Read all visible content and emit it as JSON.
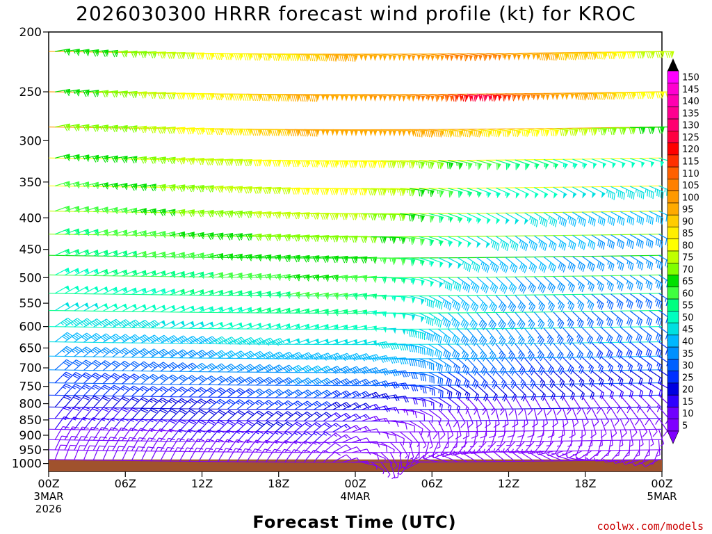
{
  "chart_data": {
    "type": "wind-barb-profile",
    "title": "2026030300 HRRR forecast wind profile (kt) for KROC",
    "xlabel": "Forecast Time (UTC)",
    "ylabel": "",
    "credit": "coolwx.com/models",
    "x_ticks": [
      {
        "hours": 0,
        "label": "00Z",
        "sub1": "3MAR",
        "sub2": "2026"
      },
      {
        "hours": 6,
        "label": "06Z",
        "sub1": "",
        "sub2": ""
      },
      {
        "hours": 12,
        "label": "12Z",
        "sub1": "",
        "sub2": ""
      },
      {
        "hours": 18,
        "label": "18Z",
        "sub1": "",
        "sub2": ""
      },
      {
        "hours": 24,
        "label": "00Z",
        "sub1": "4MAR",
        "sub2": ""
      },
      {
        "hours": 30,
        "label": "06Z",
        "sub1": "",
        "sub2": ""
      },
      {
        "hours": 36,
        "label": "12Z",
        "sub1": "",
        "sub2": ""
      },
      {
        "hours": 42,
        "label": "18Z",
        "sub1": "",
        "sub2": ""
      },
      {
        "hours": 48,
        "label": "00Z",
        "sub1": "5MAR",
        "sub2": ""
      }
    ],
    "xlim_hours": [
      0,
      48
    ],
    "pressure_ticks": [
      200,
      250,
      300,
      350,
      400,
      450,
      500,
      550,
      600,
      650,
      700,
      750,
      800,
      850,
      900,
      950,
      1000
    ],
    "ylim_hPa": [
      200,
      1030
    ],
    "ground_pressure_hPa": 985,
    "ground_color": "#A0522D",
    "colorbar": {
      "levels": [
        5,
        10,
        15,
        20,
        25,
        30,
        35,
        40,
        45,
        50,
        55,
        60,
        65,
        70,
        75,
        80,
        85,
        90,
        95,
        100,
        105,
        110,
        115,
        120,
        125,
        130,
        135,
        140,
        145,
        150
      ],
      "colors": [
        "#7F00FF",
        "#7000FF",
        "#3000FF",
        "#0000E0",
        "#0030FF",
        "#0060FF",
        "#0090FF",
        "#00B8FF",
        "#00E0E0",
        "#00FFC0",
        "#00FF80",
        "#40FF40",
        "#00E000",
        "#80FF00",
        "#C0FF00",
        "#FFFF00",
        "#FFEE00",
        "#FFCC00",
        "#FFAA00",
        "#FF9900",
        "#FF8000",
        "#FF6000",
        "#FF3000",
        "#FF0000",
        "#FF0040",
        "#FF0070",
        "#FF0090",
        "#FF00B0",
        "#FF00D0",
        "#FF00FF"
      ],
      "top_arrow_color": "#000000",
      "bottom_arrow_color": "#8000FF"
    },
    "profile_levels_hPa": [
      215,
      250,
      285,
      320,
      355,
      390,
      425,
      460,
      495,
      530,
      565,
      600,
      635,
      670,
      705,
      740,
      775,
      810,
      845,
      880,
      915,
      950,
      985
    ],
    "profile_times_hours": [
      0,
      3,
      6,
      9,
      12,
      15,
      18,
      21,
      24,
      27,
      30,
      33,
      36,
      39,
      42,
      45,
      48
    ],
    "speed_kt": [
      [
        65,
        68,
        72,
        78,
        82,
        85,
        88,
        95,
        98,
        100,
        105,
        110,
        100,
        95,
        90,
        80,
        78
      ],
      [
        65,
        70,
        74,
        80,
        85,
        90,
        95,
        98,
        100,
        102,
        110,
        130,
        110,
        100,
        95,
        85,
        80
      ],
      [
        70,
        72,
        75,
        80,
        85,
        90,
        95,
        98,
        100,
        98,
        95,
        90,
        85,
        80,
        75,
        70,
        68
      ],
      [
        65,
        68,
        70,
        75,
        78,
        80,
        82,
        85,
        82,
        78,
        70,
        62,
        58,
        55,
        52,
        50,
        50
      ],
      [
        62,
        65,
        68,
        72,
        75,
        78,
        80,
        82,
        80,
        75,
        62,
        55,
        52,
        50,
        48,
        45,
        45
      ],
      [
        60,
        62,
        65,
        70,
        72,
        75,
        76,
        78,
        75,
        70,
        58,
        52,
        48,
        45,
        42,
        40,
        42
      ],
      [
        58,
        60,
        62,
        65,
        68,
        70,
        72,
        75,
        72,
        65,
        55,
        48,
        45,
        42,
        40,
        38,
        40
      ],
      [
        55,
        58,
        60,
        62,
        65,
        66,
        68,
        70,
        68,
        60,
        50,
        45,
        42,
        40,
        38,
        36,
        38
      ],
      [
        52,
        55,
        56,
        58,
        60,
        62,
        65,
        66,
        62,
        55,
        48,
        42,
        40,
        38,
        36,
        35,
        35
      ],
      [
        50,
        52,
        54,
        55,
        56,
        58,
        60,
        62,
        58,
        52,
        45,
        42,
        38,
        36,
        35,
        34,
        34
      ],
      [
        48,
        50,
        50,
        52,
        53,
        55,
        56,
        58,
        55,
        50,
        45,
        40,
        38,
        35,
        34,
        32,
        32
      ],
      [
        45,
        46,
        47,
        48,
        50,
        52,
        53,
        54,
        52,
        48,
        42,
        38,
        36,
        34,
        32,
        30,
        30
      ],
      [
        40,
        42,
        42,
        44,
        45,
        46,
        48,
        50,
        48,
        45,
        40,
        36,
        34,
        32,
        30,
        28,
        28
      ],
      [
        35,
        36,
        38,
        38,
        40,
        42,
        44,
        45,
        44,
        40,
        36,
        32,
        30,
        28,
        27,
        26,
        26
      ],
      [
        30,
        32,
        32,
        34,
        36,
        38,
        40,
        40,
        38,
        34,
        30,
        28,
        26,
        24,
        24,
        22,
        22
      ],
      [
        28,
        28,
        30,
        30,
        32,
        34,
        35,
        35,
        32,
        28,
        25,
        22,
        20,
        20,
        20,
        18,
        18
      ],
      [
        25,
        25,
        26,
        26,
        28,
        30,
        30,
        30,
        25,
        20,
        16,
        14,
        12,
        12,
        14,
        14,
        14
      ],
      [
        20,
        22,
        22,
        24,
        25,
        26,
        26,
        25,
        20,
        14,
        10,
        10,
        10,
        10,
        10,
        10,
        10
      ],
      [
        18,
        18,
        20,
        20,
        22,
        22,
        22,
        20,
        15,
        10,
        8,
        8,
        8,
        8,
        8,
        8,
        8
      ],
      [
        15,
        16,
        16,
        18,
        18,
        20,
        20,
        18,
        12,
        8,
        6,
        6,
        6,
        6,
        6,
        6,
        6
      ],
      [
        12,
        14,
        14,
        15,
        16,
        16,
        16,
        15,
        10,
        6,
        5,
        5,
        5,
        5,
        5,
        5,
        5
      ],
      [
        10,
        12,
        12,
        12,
        14,
        14,
        14,
        12,
        8,
        5,
        5,
        5,
        5,
        5,
        5,
        5,
        5
      ],
      [
        8,
        10,
        10,
        10,
        12,
        12,
        12,
        10,
        5,
        5,
        5,
        5,
        5,
        5,
        5,
        5,
        5
      ]
    ],
    "direction_deg": [
      [
        260,
        262,
        265,
        268,
        270,
        272,
        274,
        275,
        276,
        277,
        278,
        278,
        277,
        276,
        274,
        272,
        270
      ],
      [
        260,
        262,
        265,
        268,
        270,
        272,
        274,
        275,
        276,
        277,
        278,
        278,
        277,
        276,
        274,
        272,
        270
      ],
      [
        258,
        260,
        262,
        265,
        268,
        270,
        272,
        274,
        275,
        276,
        277,
        278,
        278,
        277,
        275,
        272,
        270
      ],
      [
        255,
        258,
        260,
        262,
        265,
        268,
        270,
        272,
        274,
        276,
        280,
        285,
        288,
        290,
        290,
        288,
        285
      ],
      [
        252,
        255,
        258,
        260,
        262,
        265,
        268,
        270,
        272,
        275,
        282,
        290,
        295,
        298,
        298,
        295,
        292
      ],
      [
        250,
        252,
        255,
        258,
        260,
        262,
        265,
        268,
        270,
        275,
        285,
        295,
        300,
        302,
        300,
        298,
        295
      ],
      [
        248,
        250,
        252,
        255,
        258,
        260,
        262,
        265,
        268,
        275,
        290,
        300,
        305,
        305,
        302,
        300,
        298
      ],
      [
        245,
        248,
        250,
        252,
        255,
        258,
        260,
        262,
        265,
        275,
        292,
        305,
        310,
        308,
        305,
        302,
        300
      ],
      [
        242,
        245,
        248,
        250,
        252,
        255,
        258,
        260,
        262,
        275,
        295,
        310,
        315,
        312,
        308,
        305,
        302
      ],
      [
        240,
        242,
        245,
        248,
        250,
        252,
        255,
        258,
        260,
        275,
        300,
        315,
        318,
        315,
        310,
        306,
        304
      ],
      [
        238,
        240,
        242,
        245,
        248,
        250,
        252,
        255,
        258,
        275,
        305,
        320,
        320,
        318,
        312,
        308,
        305
      ],
      [
        235,
        238,
        240,
        242,
        245,
        248,
        250,
        252,
        255,
        272,
        305,
        320,
        322,
        320,
        315,
        310,
        306
      ],
      [
        232,
        235,
        238,
        240,
        242,
        245,
        248,
        250,
        252,
        270,
        305,
        320,
        322,
        320,
        315,
        310,
        306
      ],
      [
        230,
        232,
        235,
        238,
        240,
        242,
        245,
        248,
        250,
        268,
        300,
        318,
        320,
        318,
        312,
        308,
        305
      ],
      [
        228,
        230,
        232,
        235,
        238,
        240,
        242,
        245,
        248,
        265,
        298,
        315,
        318,
        315,
        310,
        306,
        303
      ],
      [
        225,
        228,
        230,
        232,
        235,
        238,
        240,
        242,
        245,
        262,
        295,
        312,
        315,
        312,
        308,
        304,
        300
      ],
      [
        222,
        225,
        228,
        230,
        232,
        235,
        238,
        240,
        245,
        265,
        300,
        320,
        330,
        330,
        325,
        318,
        312
      ],
      [
        220,
        222,
        225,
        228,
        230,
        232,
        235,
        238,
        245,
        270,
        310,
        340,
        350,
        345,
        335,
        325,
        318
      ],
      [
        218,
        220,
        222,
        225,
        228,
        230,
        232,
        235,
        245,
        280,
        330,
        355,
        5,
        0,
        345,
        335,
        325
      ],
      [
        215,
        218,
        220,
        222,
        225,
        228,
        230,
        232,
        250,
        300,
        350,
        10,
        20,
        15,
        0,
        350,
        340
      ],
      [
        210,
        212,
        215,
        218,
        220,
        222,
        225,
        228,
        255,
        320,
        20,
        40,
        45,
        40,
        20,
        5,
        355
      ],
      [
        205,
        208,
        210,
        212,
        215,
        218,
        220,
        225,
        260,
        340,
        60,
        80,
        90,
        80,
        60,
        40,
        20
      ],
      [
        200,
        202,
        205,
        208,
        210,
        212,
        215,
        220,
        270,
        350,
        100,
        120,
        130,
        120,
        100,
        80,
        60
      ]
    ]
  }
}
